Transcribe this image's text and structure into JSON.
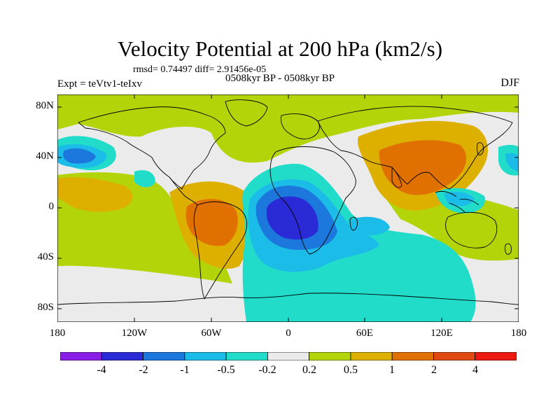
{
  "title": "Velocity Potential at 200 hPa (km2/s)",
  "stats": "rmsd= 0.74497 diff= 2.91456e-05",
  "experiment": "Expt = teVtv1-teIxv",
  "period": "0508kyr BP - 0508kyr BP",
  "season": "DJF",
  "map": {
    "projection": "cylindrical-equidistant",
    "lon_range": [
      -180,
      180
    ],
    "lat_range": [
      -90,
      90
    ],
    "lat_labels": [
      "80N",
      "40N",
      "0",
      "40S",
      "80S"
    ],
    "lon_labels": [
      "180",
      "120W",
      "60W",
      "0",
      "60E",
      "120E",
      "180"
    ]
  },
  "colorbar": {
    "labels": [
      "-4",
      "-2",
      "-1",
      "-0.5",
      "-0.2",
      "0.2",
      "0.5",
      "1",
      "2",
      "4"
    ],
    "colors": [
      "#8a1ee6",
      "#2a2ad6",
      "#1c78dc",
      "#1cbce8",
      "#20dcc8",
      "#ebebeb",
      "#b4d40a",
      "#ddb000",
      "#e07000",
      "#e04a10",
      "#ec1a10"
    ]
  },
  "colors": {
    "background_field": "#ebebeb",
    "coastline": "#000000"
  }
}
